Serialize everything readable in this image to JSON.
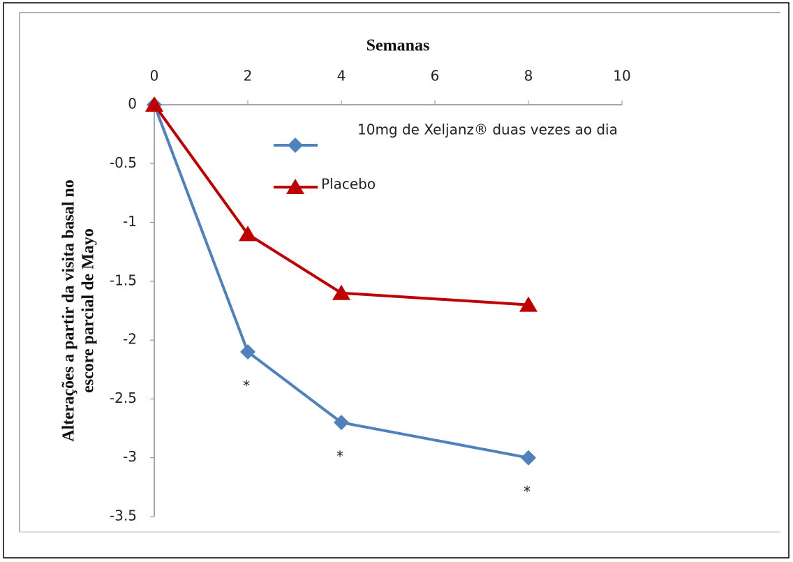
{
  "chart_data": {
    "type": "line",
    "xlabel": "Semanas",
    "ylabel": [
      "Alterações a partir da visita basal no",
      "escore parcial de Mayo"
    ],
    "x": [
      0,
      2,
      4,
      8
    ],
    "xlim": [
      0,
      10
    ],
    "xticks": [
      0,
      2,
      4,
      6,
      8,
      10
    ],
    "ylim": [
      -3.5,
      0
    ],
    "yticks": [
      0,
      -0.5,
      -1,
      -1.5,
      -2,
      -2.5,
      -3,
      -3.5
    ],
    "series": [
      {
        "name": "10mg de Xeljanz® duas vezes ao dia",
        "color": "#4f81bd",
        "marker": "diamond",
        "values": [
          0,
          -2.1,
          -2.7,
          -3.0
        ]
      },
      {
        "name": "Placebo",
        "color": "#c00000",
        "marker": "triangle",
        "values": [
          0,
          -1.1,
          -1.6,
          -1.7
        ]
      }
    ],
    "annotations": [
      "*",
      "*",
      "*"
    ]
  }
}
